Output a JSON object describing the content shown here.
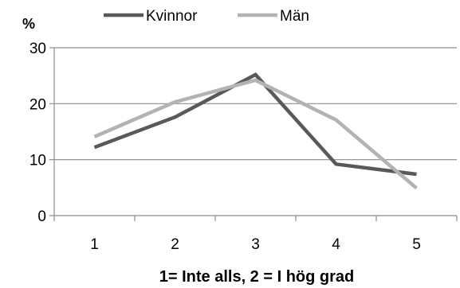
{
  "chart_data": {
    "type": "line",
    "x": [
      "1",
      "2",
      "3",
      "4",
      "5"
    ],
    "series": [
      {
        "name": "Kvinnor",
        "values": [
          12.2,
          17.6,
          25.2,
          9.2,
          7.4
        ],
        "color": "#595959"
      },
      {
        "name": "Män",
        "values": [
          14.1,
          20.3,
          24.2,
          17.1,
          4.9
        ],
        "color": "#b3b3b3"
      }
    ],
    "ylabel": "%",
    "xlabel": "1= Inte alls, 2 = I hög grad",
    "ylim": [
      0,
      30
    ],
    "yticks": [
      "0",
      "10",
      "20",
      "30"
    ],
    "grid": true,
    "legend": "top"
  }
}
